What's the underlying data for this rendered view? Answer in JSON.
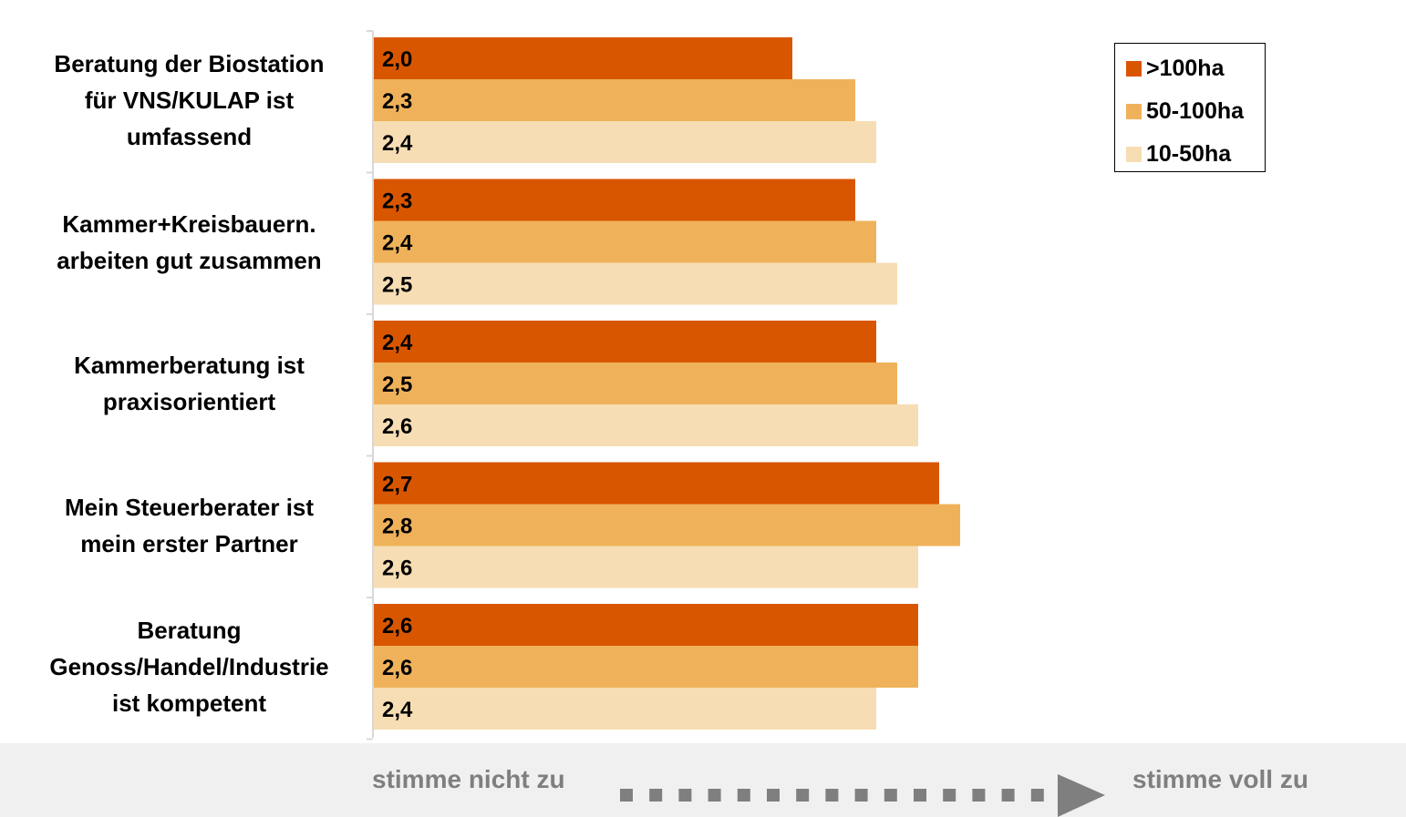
{
  "chart_data": {
    "type": "bar",
    "orientation": "horizontal",
    "categories": [
      [
        "Beratung der Biostation",
        "für VNS/KULAP ist",
        "umfassend"
      ],
      [
        "Kammer+Kreisbauern.",
        "arbeiten gut zusammen"
      ],
      [
        "Kammerberatung ist",
        "praxisorientiert"
      ],
      [
        "Mein Steuerberater ist",
        "mein erster Partner"
      ],
      [
        "Beratung",
        "Genoss/Handel/Industrie",
        "ist kompetent"
      ]
    ],
    "series": [
      {
        "name": ">100ha",
        "color": "#d95600",
        "values": [
          2.0,
          2.3,
          2.4,
          2.7,
          2.6
        ],
        "labels": [
          "2,0",
          "2,3",
          "2,4",
          "2,7",
          "2,6"
        ]
      },
      {
        "name": "50-100ha",
        "color": "#efb25a",
        "values": [
          2.3,
          2.4,
          2.5,
          2.8,
          2.6
        ],
        "labels": [
          "2,3",
          "2,4",
          "2,5",
          "2,8",
          "2,6"
        ]
      },
      {
        "name": "10-50ha",
        "color": "#f6ddb3",
        "values": [
          2.4,
          2.5,
          2.6,
          2.6,
          2.4
        ],
        "labels": [
          "2,4",
          "2,5",
          "2,6",
          "2,6",
          "2,4"
        ]
      }
    ],
    "grid": false,
    "legend_position": "top-right",
    "scale_note": {
      "left": "stimme nicht zu",
      "right": "stimme voll zu"
    }
  }
}
